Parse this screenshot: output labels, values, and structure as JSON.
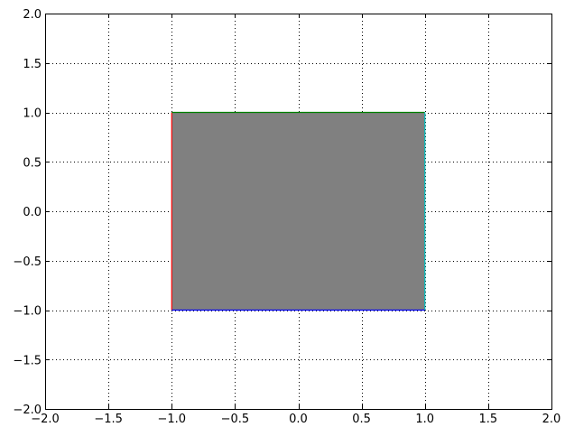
{
  "chart_data": {
    "type": "area",
    "title": "",
    "xlabel": "",
    "ylabel": "",
    "xlim": [
      -2.0,
      2.0
    ],
    "ylim": [
      -2.0,
      2.0
    ],
    "xticks": [
      -2.0,
      -1.5,
      -1.0,
      -0.5,
      0.0,
      0.5,
      1.0,
      1.5,
      2.0
    ],
    "yticks": [
      -2.0,
      -1.5,
      -1.0,
      -0.5,
      0.0,
      0.5,
      1.0,
      1.5,
      2.0
    ],
    "xtick_labels": [
      "−2.0",
      "−1.5",
      "−1.0",
      "−0.5",
      "0.0",
      "0.5",
      "1.0",
      "1.5",
      "2.0"
    ],
    "ytick_labels": [
      "−2.0",
      "−1.5",
      "−1.0",
      "−0.5",
      "0.0",
      "0.5",
      "1.0",
      "1.5",
      "2.0"
    ],
    "grid": true,
    "grid_style": "dotted",
    "legend": "none",
    "fill_region": {
      "x": [
        -1.0,
        1.0
      ],
      "y": [
        -1.0,
        1.0
      ],
      "color": "#808080"
    },
    "edges": [
      {
        "side": "left",
        "x": [
          -1.0,
          -1.0
        ],
        "y": [
          -1.0,
          1.0
        ],
        "color": "#ff0000"
      },
      {
        "side": "top",
        "x": [
          -1.0,
          1.0
        ],
        "y": [
          1.0,
          1.0
        ],
        "color": "#008000"
      },
      {
        "side": "right",
        "x": [
          1.0,
          1.0
        ],
        "y": [
          -1.0,
          1.0
        ],
        "color": "#00bfbf"
      },
      {
        "side": "bottom",
        "x": [
          -1.0,
          1.0
        ],
        "y": [
          -1.0,
          -1.0
        ],
        "color": "#0000ff"
      }
    ]
  }
}
